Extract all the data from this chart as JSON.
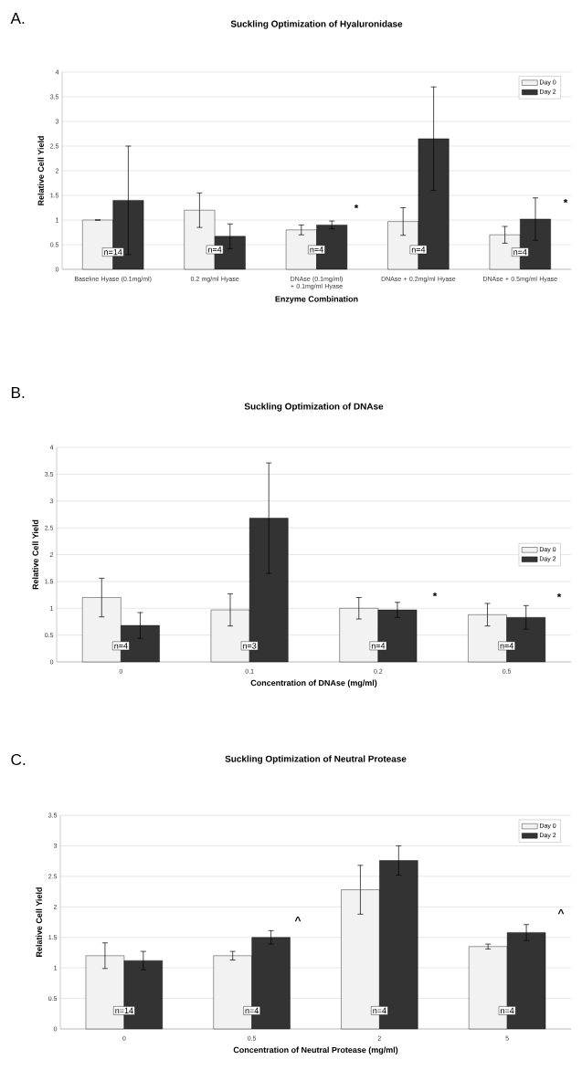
{
  "chart_data": [
    {
      "type": "bar",
      "title": "Suckling Optimization of Hyaluronidase",
      "xlabel": "Enzyme Combination",
      "ylabel": "Relative Cell Yield",
      "categories": [
        "Baseline Hyase (0.1mg/ml)",
        "0.2 mg/ml Hyase",
        "DNAse (0.1mg/ml) + 0.1mg/ml Hyase",
        "DNAse + 0.2mg/ml Hyase",
        "DNAse + 0.5mg/ml Hyase"
      ],
      "series": [
        {
          "name": "Day 0",
          "color": "#f2f2f2",
          "values": [
            1.0,
            1.2,
            0.8,
            0.97,
            0.7
          ],
          "errors": [
            null,
            0.35,
            0.1,
            0.28,
            0.17
          ]
        },
        {
          "name": "Day 2",
          "color": "#333333",
          "values": [
            1.4,
            0.67,
            0.9,
            2.65,
            1.02
          ],
          "errors": [
            1.1,
            0.25,
            0.08,
            1.05,
            0.43
          ]
        }
      ],
      "ylim": [
        0,
        4
      ],
      "yticks": [
        0,
        0.5,
        1,
        1.5,
        2,
        2.5,
        3,
        3.5,
        4
      ],
      "grid": "y",
      "legend": "top right",
      "annotations": [
        "A.",
        {
          "text": "n=14",
          "x": "Baseline Hyase (0.1mg/ml)",
          "y": 0.35
        },
        {
          "text": "n=4",
          "x": "0.2 mg/ml Hyase",
          "y": 0.4
        },
        {
          "text": "n=4",
          "x": "DNAse (0.1mg/ml) + 0.1mg/ml Hyase",
          "y": 0.4
        },
        {
          "text": "n=4",
          "x": "DNAse + 0.2mg/ml Hyase",
          "y": 0.4
        },
        {
          "text": "n=4",
          "x": "DNAse + 0.5mg/ml Hyase",
          "y": 0.35
        },
        "*",
        "*"
      ]
    },
    {
      "type": "bar",
      "title": "Suckling Optimization of DNAse",
      "xlabel": "Concentration of DNAse (mg/ml)",
      "ylabel": "Relative Cell Yield",
      "categories": [
        "0",
        "0.1",
        "0.2",
        "0.5"
      ],
      "series": [
        {
          "name": "Day 0",
          "color": "#f2f2f2",
          "values": [
            1.2,
            0.97,
            1.0,
            0.88
          ],
          "errors": [
            0.36,
            0.3,
            0.2,
            0.21
          ]
        },
        {
          "name": "Day 2",
          "color": "#333333",
          "values": [
            0.68,
            2.68,
            0.97,
            0.83
          ],
          "errors": [
            0.24,
            1.03,
            0.14,
            0.22
          ]
        }
      ],
      "ylim": [
        0,
        4
      ],
      "yticks": [
        0,
        0.5,
        1,
        1.5,
        2,
        2.5,
        3,
        3.5,
        4
      ],
      "grid": "y",
      "legend": "right",
      "annotations": [
        "B.",
        {
          "text": "n=4",
          "x": "0",
          "y": 0.3
        },
        {
          "text": "n=3",
          "x": "0.1",
          "y": 0.3
        },
        {
          "text": "n=4",
          "x": "0.2",
          "y": 0.3
        },
        {
          "text": "n=4",
          "x": "0.5",
          "y": 0.3
        },
        "*",
        "*"
      ]
    },
    {
      "type": "bar",
      "title": "Suckling Optimization of Neutral Protease",
      "xlabel": "Concentration of Neutral Protease (mg/ml)",
      "ylabel": "Relative Cell Yield",
      "categories": [
        "0",
        "0.5",
        "2",
        "5"
      ],
      "series": [
        {
          "name": "Day 0",
          "color": "#f2f2f2",
          "values": [
            1.2,
            1.2,
            2.28,
            1.35
          ],
          "errors": [
            0.21,
            0.07,
            0.4,
            0.04
          ]
        },
        {
          "name": "Day 2",
          "color": "#333333",
          "values": [
            1.12,
            1.5,
            2.76,
            1.58
          ],
          "errors": [
            0.15,
            0.11,
            0.24,
            0.13
          ]
        }
      ],
      "ylim": [
        0,
        3.5
      ],
      "yticks": [
        0,
        0.5,
        1,
        1.5,
        2,
        2.5,
        3,
        3.5
      ],
      "grid": "y",
      "legend": "top right",
      "annotations": [
        "C.",
        {
          "text": "n=14",
          "x": "0",
          "y": 0.3
        },
        {
          "text": "n=4",
          "x": "0.5",
          "y": 0.3
        },
        {
          "text": "n=4",
          "x": "2",
          "y": 0.3
        },
        {
          "text": "n=4",
          "x": "5",
          "y": 0.3
        },
        "^",
        "^"
      ]
    }
  ]
}
